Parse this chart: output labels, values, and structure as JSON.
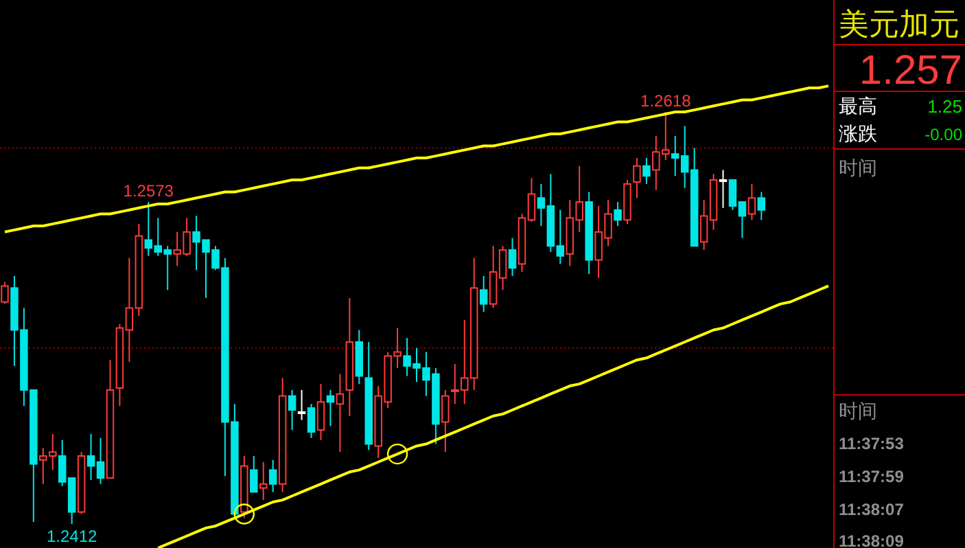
{
  "chart_data": [
    {
      "type": "candlestick",
      "categories": [
        null,
        null,
        null,
        null,
        null,
        null,
        null,
        null,
        null,
        null,
        null,
        null,
        null,
        null,
        null,
        null,
        null,
        null,
        null,
        null,
        null,
        null,
        null,
        null,
        null,
        null,
        null,
        null,
        null,
        null,
        null,
        null,
        null,
        null,
        null,
        null,
        null,
        null,
        null,
        null,
        null,
        null,
        null,
        null,
        null,
        null,
        null,
        null,
        null,
        null,
        null,
        null,
        null,
        null,
        null,
        null,
        null,
        null,
        null,
        null,
        null,
        null,
        null,
        null,
        null,
        null,
        null,
        null,
        null,
        null,
        null,
        null,
        null,
        null,
        null,
        null,
        null,
        null,
        null,
        null,
        null,
        null,
        null,
        null,
        null,
        null,
        null
      ],
      "ohlc": [
        [
          1.2523,
          1.2533,
          1.2522,
          1.2531
        ],
        [
          1.253,
          1.2536,
          1.2491,
          1.2509
        ],
        [
          1.2509,
          1.252,
          1.2471,
          1.2479
        ],
        [
          1.2479,
          1.2479,
          1.2413,
          1.2442
        ],
        [
          1.2444,
          1.245,
          1.2432,
          1.2446
        ],
        [
          1.2446,
          1.2457,
          1.2439,
          1.2448
        ],
        [
          1.2446,
          1.2454,
          1.2431,
          1.2433
        ],
        [
          1.2435,
          1.2435,
          1.2412,
          1.2418
        ],
        [
          1.2418,
          1.2448,
          1.2417,
          1.2446
        ],
        [
          1.2446,
          1.2457,
          1.2434,
          1.2441
        ],
        [
          1.2443,
          1.2455,
          1.2432,
          1.2435
        ],
        [
          1.2435,
          1.2494,
          1.2435,
          1.2479
        ],
        [
          1.248,
          1.2512,
          1.2471,
          1.251
        ],
        [
          1.2509,
          1.2545,
          1.2493,
          1.252
        ],
        [
          1.252,
          1.2562,
          1.2516,
          1.2556
        ],
        [
          1.2554,
          1.2573,
          1.2546,
          1.255
        ],
        [
          1.2551,
          1.2565,
          1.2546,
          1.2548
        ],
        [
          1.2549,
          1.2551,
          1.2529,
          1.2547
        ],
        [
          1.2547,
          1.2558,
          1.2541,
          1.2549
        ],
        [
          1.2547,
          1.2565,
          1.2546,
          1.2558
        ],
        [
          1.2558,
          1.2566,
          1.2539,
          1.2553
        ],
        [
          1.2554,
          1.2554,
          1.2525,
          1.2548
        ],
        [
          1.2549,
          1.2551,
          1.2539,
          1.254
        ],
        [
          1.254,
          1.2545,
          1.2436,
          1.2463
        ],
        [
          1.2463,
          1.2472,
          1.2416,
          1.2417
        ],
        [
          1.2418,
          1.2446,
          1.2415,
          1.2441
        ],
        [
          1.2439,
          1.2446,
          1.2428,
          1.2428
        ],
        [
          1.243,
          1.2443,
          1.2424,
          1.2432
        ],
        [
          1.2439,
          1.2444,
          1.2428,
          1.2432
        ],
        [
          1.2432,
          1.2485,
          1.2428,
          1.2476
        ],
        [
          1.2476,
          1.2479,
          1.2459,
          1.2469
        ],
        [
          1.2468,
          1.2479,
          1.2464,
          1.2468
        ],
        [
          1.247,
          1.2472,
          1.2455,
          1.2458
        ],
        [
          1.2459,
          1.2482,
          1.2454,
          1.2473
        ],
        [
          1.2476,
          1.2479,
          1.2461,
          1.2473
        ],
        [
          1.2472,
          1.2487,
          1.2448,
          1.2477
        ],
        [
          1.2479,
          1.2525,
          1.2466,
          1.2503
        ],
        [
          1.2503,
          1.2509,
          1.2482,
          1.2486
        ],
        [
          1.2485,
          1.2503,
          1.2449,
          1.2452
        ],
        [
          1.2451,
          1.2481,
          1.2445,
          1.2476
        ],
        [
          1.2473,
          1.2498,
          1.247,
          1.2496
        ],
        [
          1.2496,
          1.251,
          1.249,
          1.2498
        ],
        [
          1.2496,
          1.2505,
          1.2486,
          1.2491
        ],
        [
          1.2492,
          1.25,
          1.2483,
          1.249
        ],
        [
          1.249,
          1.2498,
          1.2476,
          1.2484
        ],
        [
          1.2487,
          1.249,
          1.2452,
          1.2462
        ],
        [
          1.2463,
          1.2479,
          1.2448,
          1.2476
        ],
        [
          1.2479,
          1.2492,
          1.2472,
          1.2479
        ],
        [
          1.2479,
          1.2514,
          1.2472,
          1.2485
        ],
        [
          1.2485,
          1.2545,
          1.2479,
          1.253
        ],
        [
          1.2529,
          1.2536,
          1.2518,
          1.2522
        ],
        [
          1.2522,
          1.2551,
          1.252,
          1.2538
        ],
        [
          1.2535,
          1.2551,
          1.2529,
          1.2549
        ],
        [
          1.2549,
          1.2555,
          1.2536,
          1.254
        ],
        [
          1.2542,
          1.2567,
          1.2538,
          1.2565
        ],
        [
          1.2564,
          1.2585,
          1.2563,
          1.2577
        ],
        [
          1.2575,
          1.2582,
          1.2561,
          1.257
        ],
        [
          1.2571,
          1.2587,
          1.2548,
          1.2551
        ],
        [
          1.2551,
          1.2569,
          1.2542,
          1.2546
        ],
        [
          1.2547,
          1.2574,
          1.2541,
          1.2565
        ],
        [
          1.2564,
          1.2591,
          1.2558,
          1.2573
        ],
        [
          1.2573,
          1.2578,
          1.2537,
          1.2544
        ],
        [
          1.2544,
          1.2571,
          1.2535,
          1.2558
        ],
        [
          1.2555,
          1.2574,
          1.2551,
          1.2567
        ],
        [
          1.2569,
          1.2573,
          1.2561,
          1.2564
        ],
        [
          1.2564,
          1.2584,
          1.2562,
          1.2582
        ],
        [
          1.2583,
          1.2595,
          1.2575,
          1.2591
        ],
        [
          1.2591,
          1.2595,
          1.2582,
          1.2586
        ],
        [
          1.2589,
          1.2606,
          1.2579,
          1.2598
        ],
        [
          1.2597,
          1.2618,
          1.2594,
          1.2599
        ],
        [
          1.2597,
          1.2606,
          1.2586,
          1.2595
        ],
        [
          1.2596,
          1.2611,
          1.258,
          1.2588
        ],
        [
          1.2589,
          1.26,
          1.2551,
          1.2551
        ],
        [
          1.2553,
          1.2574,
          1.2549,
          1.2566
        ],
        [
          1.2564,
          1.2587,
          1.2559,
          1.2584
        ],
        [
          1.2584,
          1.2589,
          1.257,
          1.2584
        ],
        [
          1.2584,
          1.2584,
          1.2569,
          1.2571
        ],
        [
          1.2573,
          1.2573,
          1.2555,
          1.2566
        ],
        [
          1.2567,
          1.2582,
          1.2564,
          1.2575
        ],
        [
          1.2575,
          1.2578,
          1.2564,
          1.2569
        ],
        null,
        null,
        null,
        null,
        null,
        null,
        null
      ],
      "colors": [
        "#ff3b3b",
        "#00e6e6",
        "#00e6e6",
        "#00e6e6",
        "#ff3b3b",
        "#ff3b3b",
        "#00e6e6",
        "#00e6e6",
        "#ff3b3b",
        "#00e6e6",
        "#00e6e6",
        "#ff3b3b",
        "#ff3b3b",
        "#ff3b3b",
        "#ff3b3b",
        "#00e6e6",
        "#00e6e6",
        "#00e6e6",
        "#ff3b3b",
        "#ff3b3b",
        "#00e6e6",
        "#00e6e6",
        "#00e6e6",
        "#00e6e6",
        "#00e6e6",
        "#ff3b3b",
        "#00e6e6",
        "#ff3b3b",
        "#00e6e6",
        "#ff3b3b",
        "#00e6e6",
        "#ffffff",
        "#00e6e6",
        "#ff3b3b",
        "#00e6e6",
        "#ff3b3b",
        "#ff3b3b",
        "#00e6e6",
        "#00e6e6",
        "#ff3b3b",
        "#ff3b3b",
        "#ff3b3b",
        "#00e6e6",
        "#00e6e6",
        "#00e6e6",
        "#00e6e6",
        "#ff3b3b",
        "#ff3b3b",
        "#ff3b3b",
        "#ff3b3b",
        "#00e6e6",
        "#ff3b3b",
        "#ff3b3b",
        "#00e6e6",
        "#ff3b3b",
        "#ff3b3b",
        "#00e6e6",
        "#00e6e6",
        "#00e6e6",
        "#ff3b3b",
        "#ff3b3b",
        "#00e6e6",
        "#ff3b3b",
        "#ff3b3b",
        "#00e6e6",
        "#ff3b3b",
        "#ff3b3b",
        "#00e6e6",
        "#ff3b3b",
        "#ff3b3b",
        "#00e6e6",
        "#00e6e6",
        "#00e6e6",
        "#ff3b3b",
        "#ff3b3b",
        "#ffffff",
        "#00e6e6",
        "#00e6e6",
        "#ff3b3b",
        "#00e6e6",
        null,
        null,
        null,
        null,
        null,
        null,
        null
      ],
      "yticks": [
        {
          "value": 1.25,
          "label": null
        },
        {
          "value": 1.26,
          "label": null
        }
      ],
      "grid": "y",
      "series": [
        {
          "type": "line",
          "color": "#ffff00",
          "values": [
            1.2558,
            1.2559,
            1.256,
            1.2561,
            1.2561,
            1.2562,
            1.2563,
            1.2564,
            1.2565,
            1.2566,
            1.2567,
            1.2567,
            1.2568,
            1.2569,
            1.257,
            1.2571,
            1.2572,
            1.2572,
            1.2573,
            1.2574,
            1.2575,
            1.2576,
            1.2577,
            1.2578,
            1.2578,
            1.2579,
            1.258,
            1.2581,
            1.2582,
            1.2583,
            1.2584,
            1.2584,
            1.2585,
            1.2586,
            1.2587,
            1.2588,
            1.2589,
            1.259,
            1.259,
            1.2591,
            1.2592,
            1.2593,
            1.2594,
            1.2595,
            1.2595,
            1.2596,
            1.2597,
            1.2598,
            1.2599,
            1.26,
            1.2601,
            1.2601,
            1.2602,
            1.2603,
            1.2604,
            1.2605,
            1.2606,
            1.2607,
            1.2607,
            1.2608,
            1.2609,
            1.261,
            1.2611,
            1.2612,
            1.2613,
            1.2613,
            1.2614,
            1.2615,
            1.2616,
            1.2617,
            1.2618,
            1.2618,
            1.2619,
            1.262,
            1.2621,
            1.2622,
            1.2623,
            1.2624,
            1.2624,
            1.2625,
            1.2626,
            1.2627,
            1.2628,
            1.2629,
            1.263,
            1.263,
            1.2631
          ]
        },
        {
          "type": "line",
          "color": "#ffff00",
          "values": [
            null,
            null,
            null,
            null,
            null,
            null,
            null,
            null,
            null,
            null,
            null,
            null,
            null,
            null,
            null,
            null,
            1.24,
            1.2402,
            1.2404,
            1.2406,
            1.2408,
            1.241,
            1.2411,
            1.2413,
            1.2415,
            1.2417,
            1.2419,
            1.2421,
            1.2423,
            1.2424,
            1.2426,
            1.2428,
            1.243,
            1.2432,
            1.2434,
            1.2436,
            1.2438,
            1.2439,
            1.2441,
            1.2443,
            1.2445,
            1.2447,
            1.2449,
            1.2451,
            1.2452,
            1.2454,
            1.2456,
            1.2458,
            1.246,
            1.2462,
            1.2464,
            1.2466,
            1.2467,
            1.2469,
            1.2471,
            1.2473,
            1.2475,
            1.2477,
            1.2479,
            1.2481,
            1.2482,
            1.2484,
            1.2486,
            1.2488,
            1.249,
            1.2492,
            1.2494,
            1.2495,
            1.2497,
            1.2499,
            1.2501,
            1.2503,
            1.2505,
            1.2507,
            1.2509,
            1.251,
            1.2512,
            1.2514,
            1.2516,
            1.2518,
            1.252,
            1.2522,
            1.2523,
            1.2525,
            1.2527,
            1.2529,
            1.2531
          ]
        },
        {
          "type": "scatter",
          "color": "#ffff00",
          "marker": "circle",
          "values": [
            null,
            null,
            null,
            null,
            null,
            null,
            null,
            null,
            null,
            null,
            null,
            null,
            null,
            null,
            null,
            null,
            null,
            null,
            null,
            null,
            null,
            null,
            null,
            null,
            null,
            1.2417,
            null,
            null,
            null,
            null,
            null,
            null,
            null,
            null,
            null,
            null,
            null,
            null,
            null,
            null,
            null,
            1.2447,
            null,
            null,
            null,
            null,
            null,
            null,
            null,
            null,
            null,
            null,
            null,
            null,
            null,
            null,
            null,
            null,
            null,
            null,
            null,
            null,
            null,
            null,
            null,
            null,
            null,
            null,
            null,
            null,
            null,
            null,
            null,
            null,
            null,
            null,
            null,
            null,
            null,
            null,
            null,
            null,
            null,
            null,
            null,
            null,
            null
          ]
        }
      ],
      "annotations": [
        {
          "text": "1.2573",
          "y": 1.2573
        },
        {
          "text": "1.2618",
          "y": 1.2618
        },
        {
          "text": "1.2412",
          "y": 1.2412
        }
      ]
    },
    {
      "type": "other",
      "title": "美元加元",
      "annotations": [
        "1.257",
        "最高",
        "1.25",
        "涨跌",
        "-0.00",
        "时间",
        "时间",
        "11:37:53",
        "11:37:59",
        "11:38:07",
        "11:38:09"
      ]
    }
  ]
}
